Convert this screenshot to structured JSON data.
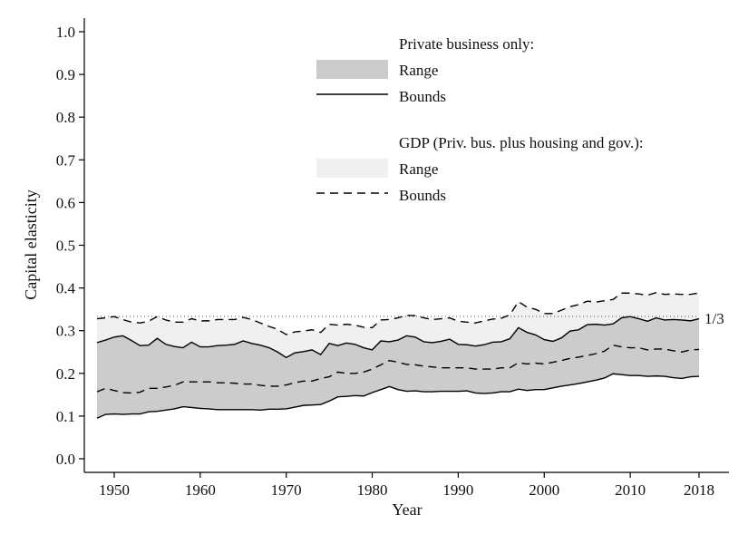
{
  "chart_data": {
    "type": "area",
    "xlabel": "Year",
    "ylabel": "Capital elasticity",
    "xlim": [
      1947.5,
      2021.5
    ],
    "ylim": [
      0.0,
      1.0
    ],
    "x_ticks": [
      1950,
      1960,
      1970,
      1980,
      1990,
      2000,
      2010,
      2018
    ],
    "x_tick_labels": [
      "1950",
      "1960",
      "1970",
      "1980",
      "1990",
      "2000",
      "2010",
      "2018"
    ],
    "y_ticks": [
      0.0,
      0.1,
      0.2,
      0.3,
      0.4,
      0.5,
      0.6,
      0.7,
      0.8,
      0.9,
      1.0
    ],
    "y_tick_labels": [
      "0.0",
      "0.1",
      "0.2",
      "0.3",
      "0.4",
      "0.5",
      "0.6",
      "0.7",
      "0.8",
      "0.9",
      "1.0"
    ],
    "grid": false,
    "legend_position": "top-center",
    "reference_line": {
      "value": 0.3333,
      "label": "1/3",
      "style": "dotted"
    },
    "x": [
      1948,
      1949,
      1950,
      1951,
      1952,
      1953,
      1954,
      1955,
      1956,
      1957,
      1958,
      1959,
      1960,
      1961,
      1962,
      1963,
      1964,
      1965,
      1966,
      1967,
      1968,
      1969,
      1970,
      1971,
      1972,
      1973,
      1974,
      1975,
      1976,
      1977,
      1978,
      1979,
      1980,
      1981,
      1982,
      1983,
      1984,
      1985,
      1986,
      1987,
      1988,
      1989,
      1990,
      1991,
      1992,
      1993,
      1994,
      1995,
      1996,
      1997,
      1998,
      1999,
      2000,
      2001,
      2002,
      2003,
      2004,
      2005,
      2006,
      2007,
      2008,
      2009,
      2010,
      2011,
      2012,
      2013,
      2014,
      2015,
      2016,
      2017,
      2018
    ],
    "groups": [
      {
        "heading": "Private business only:",
        "range_label": "Range",
        "bounds_label": "Bounds",
        "range_color": "#cccccc",
        "bounds_style": "solid",
        "lower": [
          0.095,
          0.104,
          0.105,
          0.104,
          0.105,
          0.105,
          0.11,
          0.111,
          0.114,
          0.117,
          0.122,
          0.12,
          0.118,
          0.117,
          0.115,
          0.115,
          0.115,
          0.115,
          0.115,
          0.114,
          0.116,
          0.116,
          0.117,
          0.121,
          0.125,
          0.126,
          0.127,
          0.135,
          0.145,
          0.146,
          0.148,
          0.147,
          0.155,
          0.162,
          0.169,
          0.162,
          0.158,
          0.159,
          0.157,
          0.157,
          0.158,
          0.158,
          0.158,
          0.159,
          0.154,
          0.153,
          0.154,
          0.157,
          0.157,
          0.163,
          0.16,
          0.162,
          0.162,
          0.166,
          0.17,
          0.173,
          0.176,
          0.18,
          0.184,
          0.189,
          0.199,
          0.197,
          0.195,
          0.195,
          0.193,
          0.194,
          0.193,
          0.19,
          0.188,
          0.192,
          0.193
        ],
        "upper": [
          0.272,
          0.278,
          0.285,
          0.288,
          0.277,
          0.265,
          0.266,
          0.282,
          0.268,
          0.263,
          0.26,
          0.273,
          0.262,
          0.262,
          0.265,
          0.266,
          0.268,
          0.276,
          0.27,
          0.266,
          0.26,
          0.25,
          0.237,
          0.248,
          0.251,
          0.255,
          0.244,
          0.27,
          0.265,
          0.271,
          0.268,
          0.26,
          0.255,
          0.276,
          0.274,
          0.278,
          0.288,
          0.285,
          0.274,
          0.272,
          0.275,
          0.28,
          0.268,
          0.267,
          0.264,
          0.267,
          0.273,
          0.274,
          0.281,
          0.307,
          0.296,
          0.29,
          0.279,
          0.275,
          0.283,
          0.299,
          0.302,
          0.314,
          0.315,
          0.313,
          0.316,
          0.33,
          0.333,
          0.328,
          0.322,
          0.33,
          0.325,
          0.326,
          0.325,
          0.323,
          0.328
        ]
      },
      {
        "heading": "GDP (Priv. bus. plus housing and gov.):",
        "range_label": "Range",
        "bounds_label": "Bounds",
        "range_color": "#f0f0f0",
        "bounds_style": "dashed",
        "lower": [
          0.157,
          0.165,
          0.16,
          0.155,
          0.154,
          0.156,
          0.165,
          0.165,
          0.168,
          0.172,
          0.18,
          0.18,
          0.18,
          0.18,
          0.178,
          0.178,
          0.177,
          0.175,
          0.175,
          0.172,
          0.17,
          0.17,
          0.173,
          0.178,
          0.182,
          0.182,
          0.188,
          0.192,
          0.203,
          0.2,
          0.2,
          0.203,
          0.21,
          0.22,
          0.23,
          0.226,
          0.221,
          0.22,
          0.217,
          0.215,
          0.213,
          0.213,
          0.213,
          0.213,
          0.21,
          0.21,
          0.21,
          0.213,
          0.213,
          0.225,
          0.222,
          0.224,
          0.222,
          0.226,
          0.23,
          0.235,
          0.238,
          0.242,
          0.246,
          0.252,
          0.266,
          0.262,
          0.26,
          0.26,
          0.255,
          0.257,
          0.257,
          0.253,
          0.25,
          0.255,
          0.256
        ],
        "upper": [
          0.328,
          0.33,
          0.333,
          0.326,
          0.32,
          0.318,
          0.322,
          0.333,
          0.325,
          0.32,
          0.32,
          0.328,
          0.323,
          0.323,
          0.326,
          0.326,
          0.326,
          0.331,
          0.326,
          0.318,
          0.31,
          0.303,
          0.291,
          0.297,
          0.299,
          0.302,
          0.296,
          0.315,
          0.313,
          0.315,
          0.313,
          0.308,
          0.307,
          0.325,
          0.326,
          0.33,
          0.336,
          0.335,
          0.33,
          0.326,
          0.328,
          0.33,
          0.322,
          0.32,
          0.318,
          0.323,
          0.327,
          0.329,
          0.337,
          0.368,
          0.355,
          0.35,
          0.34,
          0.34,
          0.348,
          0.356,
          0.361,
          0.369,
          0.367,
          0.37,
          0.373,
          0.388,
          0.388,
          0.386,
          0.383,
          0.389,
          0.385,
          0.386,
          0.385,
          0.385,
          0.388
        ]
      }
    ]
  }
}
